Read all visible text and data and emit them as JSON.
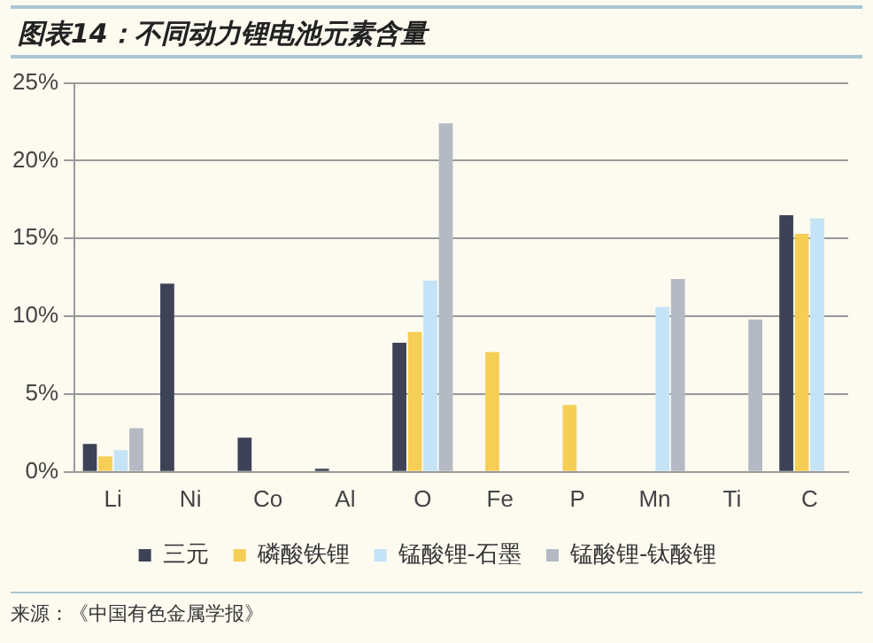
{
  "chart_data": {
    "type": "bar",
    "title": "图表14：不同动力锂电池元素含量",
    "categories": [
      "Li",
      "Ni",
      "Co",
      "Al",
      "O",
      "Fe",
      "P",
      "Mn",
      "Ti",
      "C"
    ],
    "series": [
      {
        "name": "三元",
        "color": "#3d4256",
        "values": [
          1.8,
          12.1,
          2.2,
          0.2,
          8.3,
          null,
          null,
          null,
          null,
          16.5
        ]
      },
      {
        "name": "磷酸铁锂",
        "color": "#f5ce55",
        "values": [
          1.0,
          null,
          null,
          null,
          9.0,
          7.7,
          4.3,
          null,
          null,
          15.3
        ]
      },
      {
        "name": "锰酸锂-石墨",
        "color": "#c5e3f6",
        "values": [
          1.4,
          null,
          null,
          null,
          12.3,
          null,
          null,
          10.6,
          null,
          16.3
        ]
      },
      {
        "name": "锰酸锂-钛酸锂",
        "color": "#b5b9c3",
        "values": [
          2.8,
          null,
          null,
          null,
          22.4,
          null,
          null,
          12.4,
          9.8,
          null
        ]
      }
    ],
    "ylim": [
      0,
      25
    ],
    "yticks": [
      {
        "value": 0,
        "label": "0%"
      },
      {
        "value": 5,
        "label": "5%"
      },
      {
        "value": 10,
        "label": "10%"
      },
      {
        "value": 15,
        "label": "15%"
      },
      {
        "value": 20,
        "label": "20%"
      },
      {
        "value": 25,
        "label": "25%"
      }
    ],
    "grid": "y",
    "legend": "bottom",
    "annotations": [
      "来源：《中国有色金属学报》"
    ]
  }
}
